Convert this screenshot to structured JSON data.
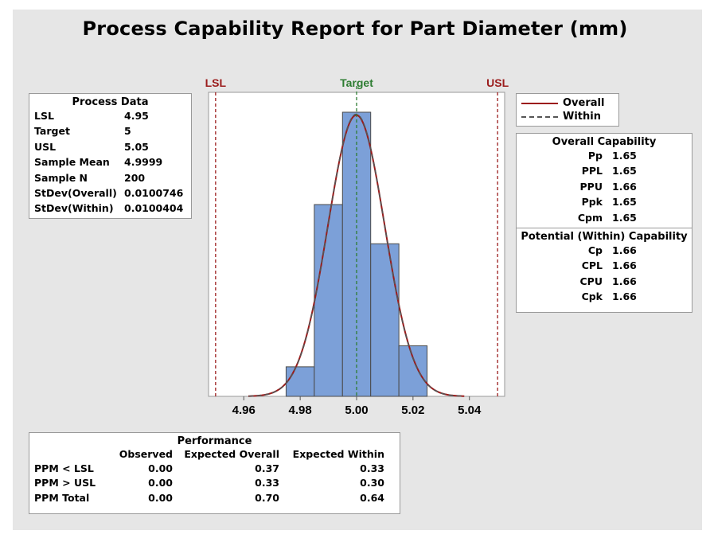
{
  "title": "Process Capability Report for Part Diameter (mm)",
  "spec_labels": {
    "lsl": "LSL",
    "target": "Target",
    "usl": "USL"
  },
  "colors": {
    "bar_fill": "#7ca0d8",
    "bar_stroke": "#4a4a4a",
    "overall_curve": "#9b1c1c",
    "within_curve": "#555555",
    "lsl_usl": "#9b1c1c",
    "target": "#2e7d32"
  },
  "process_data": {
    "header": "Process Data",
    "rows": [
      {
        "label": "LSL",
        "value": "4.95"
      },
      {
        "label": "Target",
        "value": "5"
      },
      {
        "label": "USL",
        "value": "5.05"
      },
      {
        "label": "Sample Mean",
        "value": "4.9999"
      },
      {
        "label": "Sample N",
        "value": "200"
      },
      {
        "label": "StDev(Overall)",
        "value": "0.0100746"
      },
      {
        "label": "StDev(Within)",
        "value": "0.0100404"
      }
    ]
  },
  "legend": {
    "overall": "Overall",
    "within": "Within"
  },
  "capability": {
    "overall_header": "Overall Capability",
    "overall": [
      {
        "label": "Pp",
        "value": "1.65"
      },
      {
        "label": "PPL",
        "value": "1.65"
      },
      {
        "label": "PPU",
        "value": "1.66"
      },
      {
        "label": "Ppk",
        "value": "1.65"
      },
      {
        "label": "Cpm",
        "value": "1.65"
      }
    ],
    "potential_header": "Potential (Within) Capability",
    "potential": [
      {
        "label": "Cp",
        "value": "1.66"
      },
      {
        "label": "CPL",
        "value": "1.66"
      },
      {
        "label": "CPU",
        "value": "1.66"
      },
      {
        "label": "Cpk",
        "value": "1.66"
      }
    ]
  },
  "performance": {
    "header": "Performance",
    "columns": [
      "",
      "Observed",
      "Expected Overall",
      "Expected Within"
    ],
    "rows": [
      [
        "PPM < LSL",
        "0.00",
        "0.37",
        "0.33"
      ],
      [
        "PPM > USL",
        "0.00",
        "0.33",
        "0.30"
      ],
      [
        "PPM Total",
        "0.00",
        "0.70",
        "0.64"
      ]
    ]
  },
  "chart_data": {
    "type": "bar",
    "title": "Process Capability Report for Part Diameter (mm)",
    "xlim": [
      4.9475,
      5.0525
    ],
    "ylim": [
      0,
      1
    ],
    "x_ticks": [
      "4.96",
      "4.98",
      "5.00",
      "5.02",
      "5.04"
    ],
    "x_tick_values": [
      4.96,
      4.98,
      5.0,
      5.02,
      5.04
    ],
    "bins": [
      {
        "from": 4.975,
        "to": 4.985,
        "height": 0.104
      },
      {
        "from": 4.985,
        "to": 4.995,
        "height": 0.675
      },
      {
        "from": 4.995,
        "to": 5.005,
        "height": 1.0
      },
      {
        "from": 5.005,
        "to": 5.015,
        "height": 0.537
      },
      {
        "from": 5.015,
        "to": 5.025,
        "height": 0.178
      }
    ],
    "lsl": 4.95,
    "target": 5.0,
    "usl": 5.05,
    "mean": 4.9999,
    "stdev_overall": 0.0100746,
    "stdev_within": 0.0100404,
    "curve_peak": 0.99
  }
}
